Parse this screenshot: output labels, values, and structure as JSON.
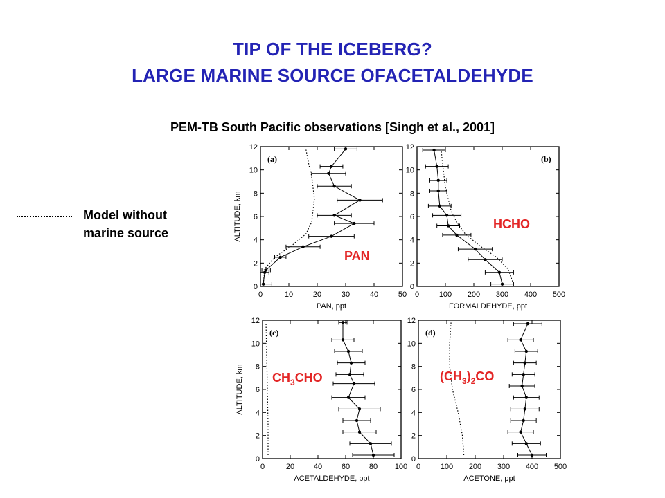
{
  "slide": {
    "title_line1": "TIP OF THE ICEBERG?",
    "title_line2": "LARGE MARINE SOURCE OFACETALDEHYDE",
    "subtitle": "PEM-TB South Pacific observations [Singh et al., 2001]",
    "legend_line1": "Model without",
    "legend_line2": "marine source",
    "title_color": "#2323B4",
    "species_label_color": "#E32626"
  },
  "chart_data": [
    {
      "type": "line",
      "panel": "(a)",
      "species_label": "PAN",
      "xlabel": "PAN, ppt",
      "ylabel": "ALTITUDE, km",
      "xlim": [
        0,
        50
      ],
      "xticks": [
        0,
        10,
        20,
        30,
        40,
        50
      ],
      "ylim": [
        0,
        12
      ],
      "yticks": [
        0,
        2,
        4,
        6,
        8,
        10,
        12
      ],
      "series": [
        {
          "style": "solid-with-errorbars",
          "points": [
            [
              1,
              0.2
            ],
            [
              1.5,
              1.2
            ],
            [
              2,
              1.4
            ],
            [
              7,
              2.5
            ],
            [
              15,
              3.4
            ],
            [
              25,
              4.3
            ],
            [
              33,
              5.4
            ],
            [
              26,
              6.1
            ],
            [
              35,
              7.4
            ],
            [
              26,
              8.6
            ],
            [
              24,
              9.7
            ],
            [
              25,
              10.3
            ],
            [
              30,
              11.8
            ]
          ],
          "errors": [
            3,
            1.5,
            1.5,
            2,
            6,
            8,
            7,
            6,
            8,
            6,
            6,
            4,
            4
          ]
        },
        {
          "style": "dotted",
          "points": [
            [
              1,
              0.2
            ],
            [
              1.5,
              1.5
            ],
            [
              5,
              2.5
            ],
            [
              11,
              3.5
            ],
            [
              16,
              4.5
            ],
            [
              18,
              5.5
            ],
            [
              18.5,
              6.5
            ],
            [
              19,
              7.5
            ],
            [
              18.5,
              8.5
            ],
            [
              18,
              9.5
            ],
            [
              17,
              10.5
            ],
            [
              16,
              11.8
            ]
          ]
        }
      ]
    },
    {
      "type": "line",
      "panel": "(b)",
      "species_label": "HCHO",
      "xlabel": "FORMALDEHYDE, ppt",
      "ylabel": "",
      "xlim": [
        0,
        500
      ],
      "xticks": [
        0,
        100,
        200,
        300,
        400,
        500
      ],
      "ylim": [
        0,
        12
      ],
      "yticks": [
        0,
        2,
        4,
        6,
        8,
        10,
        12
      ],
      "series": [
        {
          "style": "solid-with-errorbars",
          "points": [
            [
              300,
              0.2
            ],
            [
              290,
              1.2
            ],
            [
              240,
              2.3
            ],
            [
              205,
              3.2
            ],
            [
              140,
              4.4
            ],
            [
              110,
              5.2
            ],
            [
              105,
              6.1
            ],
            [
              80,
              6.9
            ],
            [
              75,
              8.2
            ],
            [
              75,
              9.1
            ],
            [
              70,
              10.3
            ],
            [
              60,
              11.7
            ]
          ],
          "errors": [
            40,
            50,
            60,
            60,
            50,
            40,
            50,
            40,
            30,
            30,
            40,
            40
          ]
        },
        {
          "style": "dotted",
          "points": [
            [
              340,
              0.2
            ],
            [
              320,
              1.5
            ],
            [
              280,
              2.5
            ],
            [
              220,
              3.5
            ],
            [
              170,
              4.5
            ],
            [
              140,
              5.5
            ],
            [
              120,
              6.5
            ],
            [
              110,
              7.5
            ],
            [
              100,
              8.5
            ],
            [
              95,
              9.5
            ],
            [
              90,
              10.5
            ],
            [
              85,
              11.7
            ]
          ]
        }
      ]
    },
    {
      "type": "line",
      "panel": "(c)",
      "species_label": "CH3CHO",
      "xlabel": "ACETALDEHYDE, ppt",
      "ylabel": "ALTITUDE, km",
      "xlim": [
        0,
        100
      ],
      "xticks": [
        0,
        20,
        40,
        60,
        80,
        100
      ],
      "ylim": [
        0,
        12
      ],
      "yticks": [
        0,
        2,
        4,
        6,
        8,
        10,
        12
      ],
      "series": [
        {
          "style": "solid-with-errorbars",
          "points": [
            [
              80,
              0.3
            ],
            [
              78,
              1.3
            ],
            [
              70,
              2.3
            ],
            [
              68,
              3.3
            ],
            [
              70,
              4.3
            ],
            [
              62,
              5.3
            ],
            [
              66,
              6.5
            ],
            [
              63,
              7.3
            ],
            [
              64,
              8.3
            ],
            [
              62,
              9.3
            ],
            [
              58,
              10.3
            ],
            [
              58,
              11.8
            ]
          ],
          "errors": [
            15,
            15,
            12,
            10,
            15,
            12,
            15,
            10,
            10,
            10,
            8,
            3
          ]
        },
        {
          "style": "dotted",
          "points": [
            [
              4,
              0.3
            ],
            [
              4,
              3
            ],
            [
              3.5,
              6
            ],
            [
              3,
              9
            ],
            [
              2.5,
              11.8
            ]
          ]
        }
      ]
    },
    {
      "type": "line",
      "panel": "(d)",
      "species_label": "(CH3)2CO",
      "xlabel": "ACETONE, ppt",
      "ylabel": "",
      "xlim": [
        0,
        500
      ],
      "xticks": [
        0,
        100,
        200,
        300,
        400,
        500
      ],
      "ylim": [
        0,
        12
      ],
      "yticks": [
        0,
        2,
        4,
        6,
        8,
        10,
        12
      ],
      "series": [
        {
          "style": "solid-with-errorbars",
          "points": [
            [
              400,
              0.3
            ],
            [
              380,
              1.3
            ],
            [
              360,
              2.3
            ],
            [
              370,
              3.3
            ],
            [
              375,
              4.3
            ],
            [
              380,
              5.3
            ],
            [
              365,
              6.3
            ],
            [
              370,
              7.3
            ],
            [
              375,
              8.3
            ],
            [
              380,
              9.3
            ],
            [
              360,
              10.3
            ],
            [
              385,
              11.7
            ]
          ],
          "errors": [
            50,
            50,
            45,
            45,
            50,
            45,
            45,
            40,
            40,
            40,
            45,
            50
          ]
        },
        {
          "style": "dotted",
          "points": [
            [
              160,
              0.3
            ],
            [
              155,
              2
            ],
            [
              140,
              4
            ],
            [
              120,
              6
            ],
            [
              110,
              8
            ],
            [
              110,
              10
            ],
            [
              115,
              11.8
            ]
          ]
        }
      ]
    }
  ]
}
